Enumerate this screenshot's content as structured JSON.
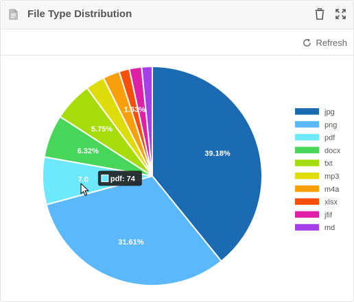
{
  "header": {
    "title": "File Type Distribution",
    "icons": [
      "file-icon",
      "trash-icon",
      "expand-icon"
    ]
  },
  "toolbar": {
    "refresh_label": "Refresh",
    "refresh_icon": "refresh-icon"
  },
  "chart_data": {
    "type": "pie",
    "title": "",
    "categories": [
      "jpg",
      "png",
      "pdf",
      "docx",
      "txt",
      "mp3",
      "m4a",
      "xlsx",
      "jfif",
      "md"
    ],
    "values": [
      39.18,
      31.61,
      7.0,
      6.32,
      5.75,
      2.8,
      2.45,
      1.53,
      1.8,
      1.56
    ],
    "colors": [
      "#1a6bb2",
      "#5bb8fb",
      "#6ee8fb",
      "#47d65a",
      "#a6dc0b",
      "#dfdc0b",
      "#f7a00b",
      "#f7500b",
      "#df1fa6",
      "#a53fe8"
    ],
    "data_labels": [
      "39.18%",
      "31.61%",
      "7.0",
      "6.32%",
      "5.75%",
      "",
      "",
      "1.53%",
      "",
      ""
    ],
    "legend_position": "right",
    "tooltip": {
      "category": "pdf",
      "text": "pdf: 74"
    }
  }
}
